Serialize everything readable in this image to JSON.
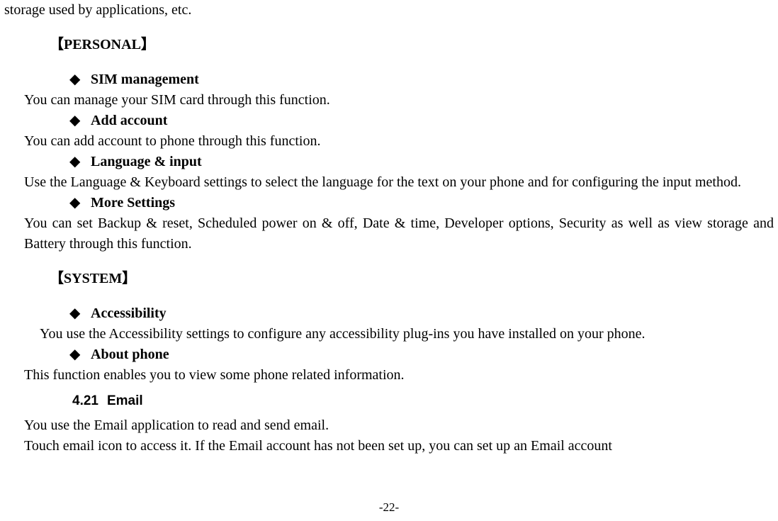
{
  "top_line": "storage used by applications, etc.",
  "personal": {
    "header": "【PERSONAL】",
    "items": [
      {
        "label": "SIM management",
        "desc": "You can manage your SIM card through this function."
      },
      {
        "label": "Add account",
        "desc": "You can add account to phone through this function."
      },
      {
        "label": "Language & input",
        "desc": "Use the Language & Keyboard settings to select the language for the text on your phone and for configuring the input method."
      },
      {
        "label": "More Settings",
        "desc": "You can set Backup & reset, Scheduled power on & off, Date & time, Developer options, Security as well as view storage and Battery through this function."
      }
    ]
  },
  "system": {
    "header": "【SYSTEM】",
    "items": [
      {
        "label": "Accessibility",
        "desc": "You use the Accessibility settings to configure any accessibility plug-ins you have installed on your phone."
      },
      {
        "label": "About phone",
        "desc": "This function enables you to view some phone related information."
      }
    ]
  },
  "subsection": {
    "number": "4.21",
    "title": "Email"
  },
  "email_para1": "You use the Email application to read and send email.",
  "email_para2": "Touch email icon to access it. If the Email account has not been set up, you can set up an Email account",
  "page_number": "-22-",
  "bullet_glyph": "◆"
}
